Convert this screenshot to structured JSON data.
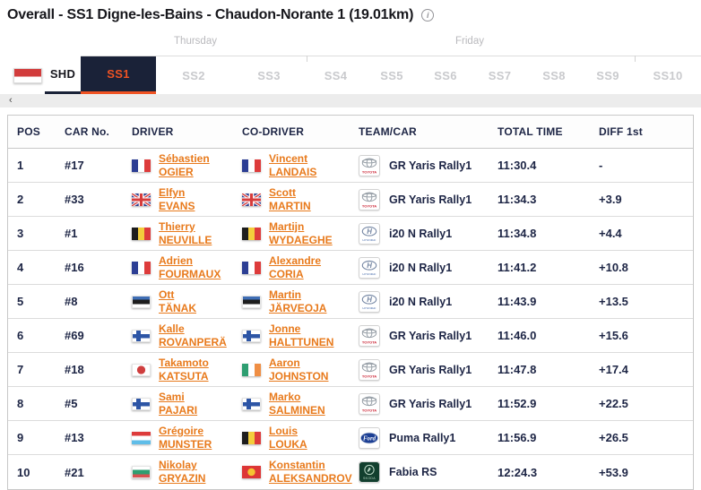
{
  "header": {
    "title": "Overall - SS1 Digne-les-Bains - Chaudon-Norante 1 (19.01km)",
    "info_icon": "i"
  },
  "day_groups": [
    "Thursday",
    "Friday"
  ],
  "stage_nav": {
    "event_flag": "monaco-flag",
    "scroll_left_arrow": "‹",
    "tabs": [
      {
        "label": "SHD",
        "state": "enabled"
      },
      {
        "label": "SS1",
        "state": "active"
      },
      {
        "label": "SS2",
        "state": "disabled"
      },
      {
        "label": "SS3",
        "state": "disabled"
      },
      {
        "label": "SS4",
        "state": "disabled"
      },
      {
        "label": "SS5",
        "state": "disabled"
      },
      {
        "label": "SS6",
        "state": "disabled"
      },
      {
        "label": "SS7",
        "state": "disabled"
      },
      {
        "label": "SS8",
        "state": "disabled"
      },
      {
        "label": "SS9",
        "state": "disabled"
      },
      {
        "label": "SS10",
        "state": "disabled"
      }
    ]
  },
  "table": {
    "columns": [
      "POS",
      "CAR No.",
      "DRIVER",
      "CO-DRIVER",
      "TEAM/CAR",
      "TOTAL TIME",
      "DIFF 1st"
    ],
    "rows": [
      {
        "pos": "1",
        "car_no": "#17",
        "driver": {
          "flag": "france",
          "first": "Sébastien",
          "last": "OGIER"
        },
        "codriver": {
          "flag": "france",
          "first": "Vincent",
          "last": "LANDAIS"
        },
        "brand": "toyota",
        "car": "GR Yaris Rally1",
        "total_time": "11:30.4",
        "diff_1st": "-"
      },
      {
        "pos": "2",
        "car_no": "#33",
        "driver": {
          "flag": "great-britain",
          "first": "Elfyn",
          "last": "EVANS"
        },
        "codriver": {
          "flag": "great-britain",
          "first": "Scott",
          "last": "MARTIN"
        },
        "brand": "toyota",
        "car": "GR Yaris Rally1",
        "total_time": "11:34.3",
        "diff_1st": "+3.9"
      },
      {
        "pos": "3",
        "car_no": "#1",
        "driver": {
          "flag": "belgium",
          "first": "Thierry",
          "last": "NEUVILLE"
        },
        "codriver": {
          "flag": "belgium",
          "first": "Martijn",
          "last": "WYDAEGHE"
        },
        "brand": "hyundai",
        "car": "i20 N Rally1",
        "total_time": "11:34.8",
        "diff_1st": "+4.4"
      },
      {
        "pos": "4",
        "car_no": "#16",
        "driver": {
          "flag": "france",
          "first": "Adrien",
          "last": "FOURMAUX"
        },
        "codriver": {
          "flag": "france",
          "first": "Alexandre",
          "last": "CORIA"
        },
        "brand": "hyundai",
        "car": "i20 N Rally1",
        "total_time": "11:41.2",
        "diff_1st": "+10.8"
      },
      {
        "pos": "5",
        "car_no": "#8",
        "driver": {
          "flag": "estonia",
          "first": "Ott",
          "last": "TÄNAK"
        },
        "codriver": {
          "flag": "estonia",
          "first": "Martin",
          "last": "JÄRVEOJA"
        },
        "brand": "hyundai",
        "car": "i20 N Rally1",
        "total_time": "11:43.9",
        "diff_1st": "+13.5"
      },
      {
        "pos": "6",
        "car_no": "#69",
        "driver": {
          "flag": "finland",
          "first": "Kalle",
          "last": "ROVANPERÄ"
        },
        "codriver": {
          "flag": "finland",
          "first": "Jonne",
          "last": "HALTTUNEN"
        },
        "brand": "toyota",
        "car": "GR Yaris Rally1",
        "total_time": "11:46.0",
        "diff_1st": "+15.6"
      },
      {
        "pos": "7",
        "car_no": "#18",
        "driver": {
          "flag": "japan",
          "first": "Takamoto",
          "last": "KATSUTA"
        },
        "codriver": {
          "flag": "ireland",
          "first": "Aaron",
          "last": "JOHNSTON"
        },
        "brand": "toyota",
        "car": "GR Yaris Rally1",
        "total_time": "11:47.8",
        "diff_1st": "+17.4"
      },
      {
        "pos": "8",
        "car_no": "#5",
        "driver": {
          "flag": "finland",
          "first": "Sami",
          "last": "PAJARI"
        },
        "codriver": {
          "flag": "finland",
          "first": "Marko",
          "last": "SALMINEN"
        },
        "brand": "toyota",
        "car": "GR Yaris Rally1",
        "total_time": "11:52.9",
        "diff_1st": "+22.5"
      },
      {
        "pos": "9",
        "car_no": "#13",
        "driver": {
          "flag": "luxembourg",
          "first": "Grégoire",
          "last": "MUNSTER"
        },
        "codriver": {
          "flag": "belgium",
          "first": "Louis",
          "last": "LOUKA"
        },
        "brand": "ford",
        "car": "Puma Rally1",
        "total_time": "11:56.9",
        "diff_1st": "+26.5"
      },
      {
        "pos": "10",
        "car_no": "#21",
        "driver": {
          "flag": "bulgaria",
          "first": "Nikolay",
          "last": "GRYAZIN"
        },
        "codriver": {
          "flag": "kyrgyzstan",
          "first": "Konstantin",
          "last": "ALEKSANDROV"
        },
        "brand": "skoda",
        "car": "Fabia RS",
        "total_time": "12:24.3",
        "diff_1st": "+53.9"
      }
    ]
  },
  "colors": {
    "accent_orange": "#f05323",
    "link_orange": "#e87a1c",
    "navy": "#1a2238",
    "text_navy": "#1d2545",
    "tab_disabled_text": "#c9cacd",
    "toyota_red": "#cb2233",
    "hyundai_blue": "#24509c",
    "ford_blue": "#1c3f94",
    "skoda_green": "#123f2e"
  }
}
